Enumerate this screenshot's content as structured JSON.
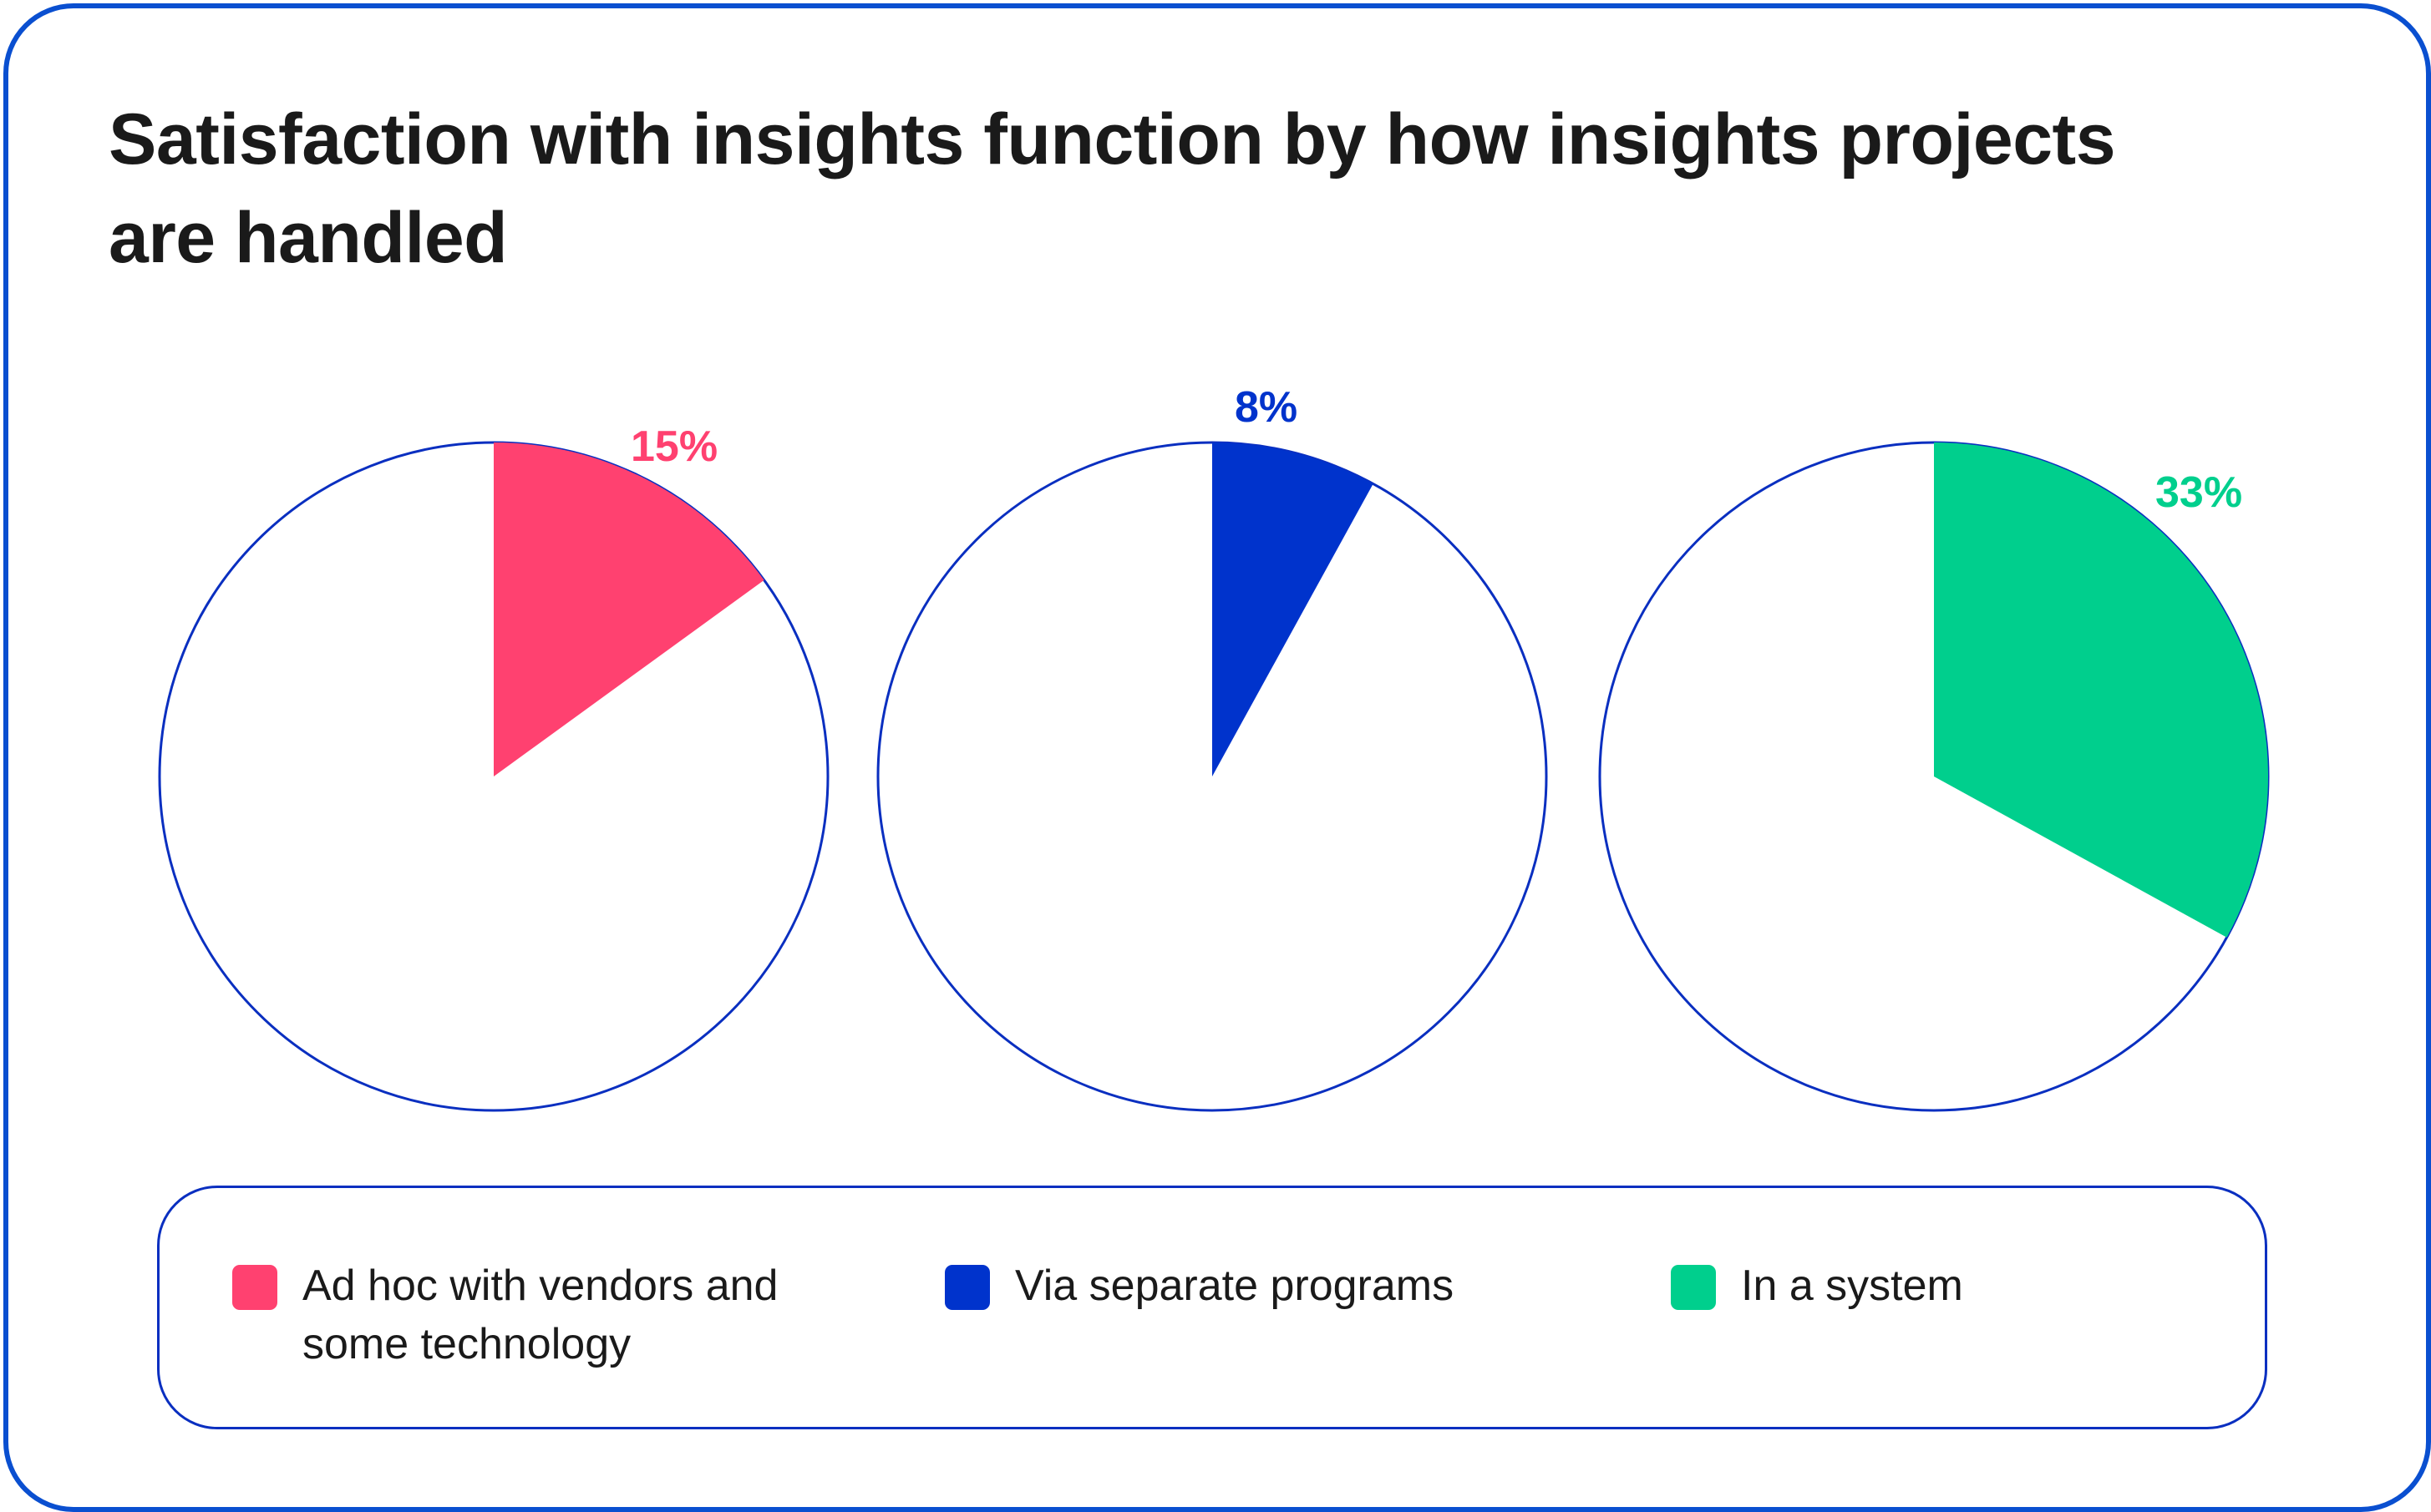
{
  "chart_data": {
    "type": "pie",
    "title": "Satisfaction with insights function by how insights projects are handled",
    "series": [
      {
        "name": "Ad hoc with vendors and some technology",
        "value": 15,
        "label": "15%",
        "color": "#FF4170"
      },
      {
        "name": "Via separate programs",
        "value": 8,
        "label": "8%",
        "color": "#0033CC"
      },
      {
        "name": "In a system",
        "value": 33,
        "label": "33%",
        "color": "#00CF8D"
      }
    ],
    "unit": "%",
    "outline_color": "#0A2FC0",
    "legend_position": "bottom"
  }
}
